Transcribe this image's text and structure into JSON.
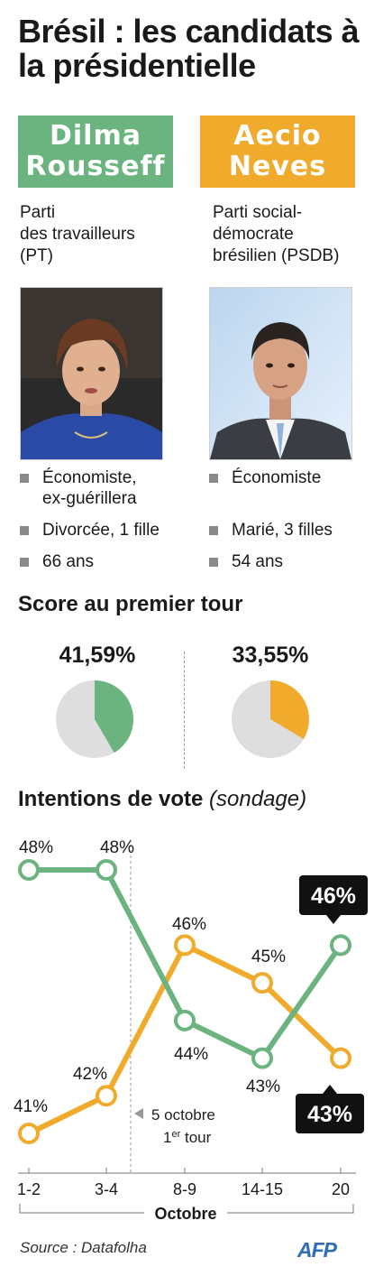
{
  "title": "Brésil : les candidats à la présidentielle",
  "candidates": [
    {
      "name_line1": "Dilma",
      "name_line2": "Rousseff",
      "party": "Parti\ndes travailleurs\n(PT)",
      "facts": [
        "Économiste,\nex-guérillera",
        "Divorcée, 1 fille",
        "66 ans"
      ],
      "first_round_label": "41,59%",
      "first_round_share": 41.59
    },
    {
      "name_line1": "Aecio",
      "name_line2": "Neves",
      "party": "Parti social-\ndémocrate\nbrésilien (PSDB)",
      "facts": [
        "Économiste",
        "Marié, 3 filles",
        "54 ans"
      ],
      "first_round_label": "33,55%",
      "first_round_share": 33.55
    }
  ],
  "first_round_title": "Score au premier tour",
  "poll_title": "Intentions de vote",
  "poll_subtitle": "(sondage)",
  "colors": {
    "dilma": "#6cb47f",
    "aecio": "#f0ab2c",
    "pie_rest": "#dedede"
  },
  "chart_data": {
    "type": "line",
    "title": "Intentions de vote (sondage)",
    "xlabel": "Octobre",
    "categories": [
      "1-2",
      "3-4",
      "8-9",
      "14-15",
      "20"
    ],
    "series": [
      {
        "name": "Dilma Rousseff",
        "values": [
          48,
          48,
          44,
          43,
          46
        ],
        "labels": [
          "48%",
          "48%",
          "44%",
          "43%",
          "46%"
        ]
      },
      {
        "name": "Aecio Neves",
        "values": [
          41,
          42,
          46,
          45,
          43
        ],
        "labels": [
          "41%",
          "42%",
          "46%",
          "45%",
          "43%"
        ]
      }
    ],
    "ylim": [
      40.5,
      48.5
    ],
    "annotation": {
      "after_category": "3-4",
      "line1": "5 octobre",
      "line2_main": "1",
      "line2_sup": "er",
      "line2_rest": " tour"
    }
  },
  "source": "Source : Datafolha",
  "logo": "AFP"
}
